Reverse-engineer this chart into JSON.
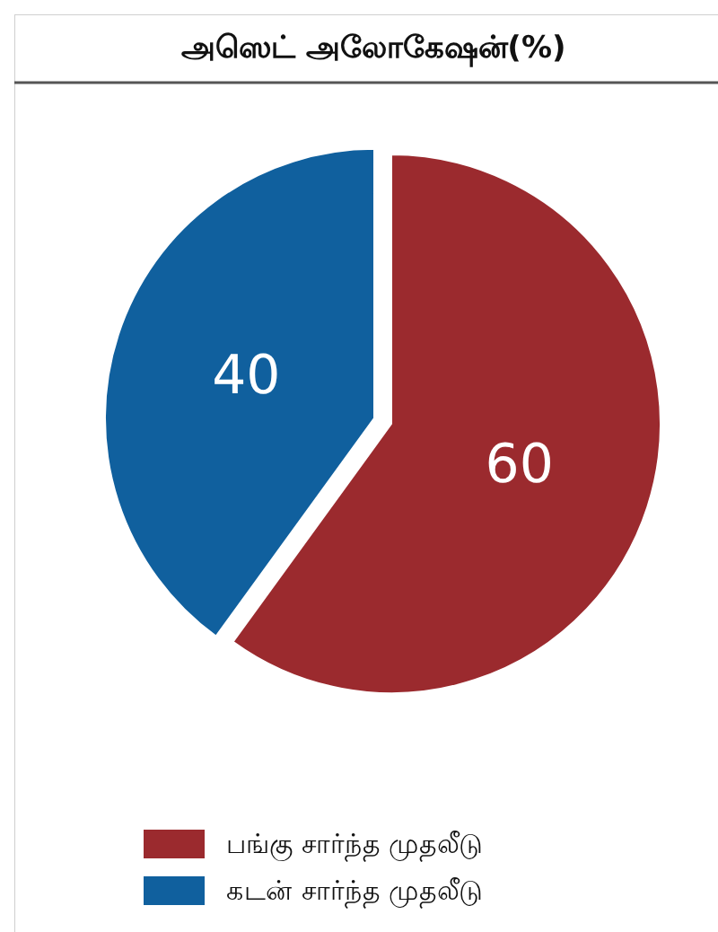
{
  "chart_data": {
    "type": "pie",
    "title": "அஸெட் அலோகேஷன்(%)",
    "categories": [
      "பங்கு சார்ந்த முதலீடு",
      "கடன் சார்ந்த முதலீடு"
    ],
    "values": [
      60,
      40
    ],
    "colors": [
      "#9b2a2e",
      "#10609e"
    ],
    "data_labels": true,
    "legend": "bottom"
  }
}
